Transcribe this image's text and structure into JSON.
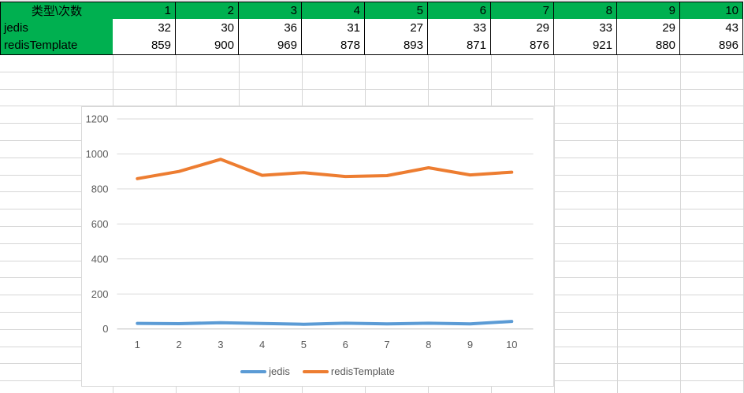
{
  "table": {
    "corner_label": "类型\\次数",
    "columns": [
      "1",
      "2",
      "3",
      "4",
      "5",
      "6",
      "7",
      "8",
      "9",
      "10"
    ],
    "rows": [
      {
        "label": "jedis",
        "values": [
          32,
          30,
          36,
          31,
          27,
          33,
          29,
          33,
          29,
          43
        ]
      },
      {
        "label": "redisTemplate",
        "values": [
          859,
          900,
          969,
          878,
          893,
          871,
          876,
          921,
          880,
          896
        ]
      }
    ],
    "header_bg": "#00b050"
  },
  "chart_data": {
    "type": "line",
    "categories": [
      "1",
      "2",
      "3",
      "4",
      "5",
      "6",
      "7",
      "8",
      "9",
      "10"
    ],
    "series": [
      {
        "name": "jedis",
        "color": "#5b9bd5",
        "values": [
          32,
          30,
          36,
          31,
          27,
          33,
          29,
          33,
          29,
          43
        ]
      },
      {
        "name": "redisTemplate",
        "color": "#ed7d31",
        "values": [
          859,
          900,
          969,
          878,
          893,
          871,
          876,
          921,
          880,
          896
        ]
      }
    ],
    "title": "",
    "xlabel": "",
    "ylabel": "",
    "ylim": [
      0,
      1200
    ],
    "yticks": [
      0,
      200,
      400,
      600,
      800,
      1000,
      1200
    ],
    "grid": true,
    "legend_position": "bottom",
    "gridline_color": "#d9d9d9",
    "axis_color": "#bfbfbf",
    "label_color": "#595959"
  }
}
